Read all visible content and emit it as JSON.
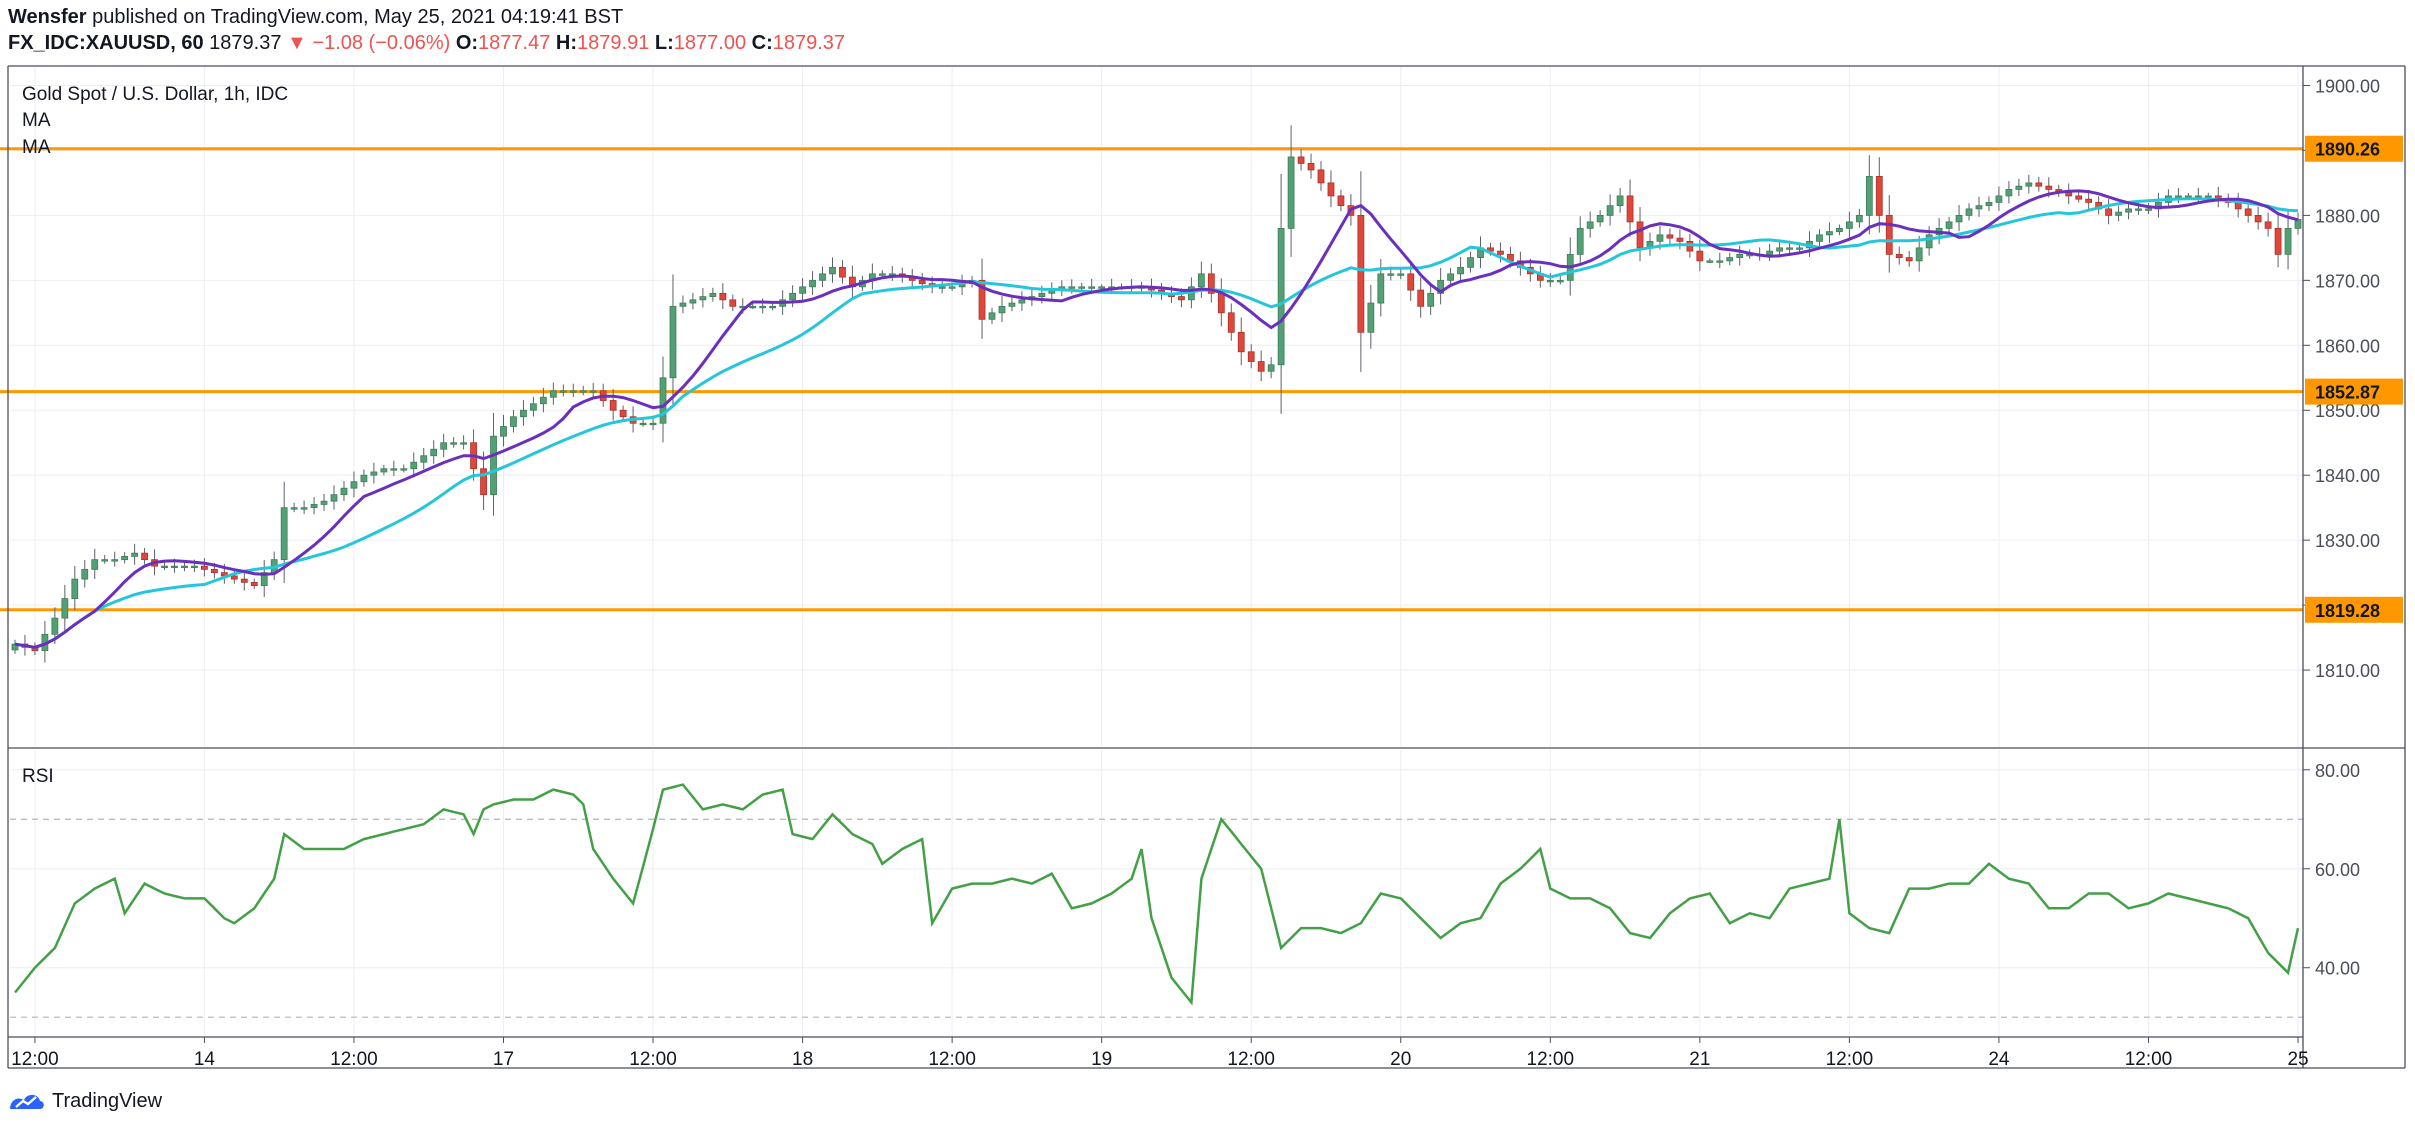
{
  "header": {
    "author": "Wensfer",
    "published_text": "published on TradingView.com, May 25, 2021 04:19:41 BST",
    "symbol": "FX_IDC:XAUUSD, 60",
    "last": "1879.37",
    "change_arrow": "▼",
    "change": "−1.08 (−0.06%)",
    "o_label": "O:",
    "o": "1877.47",
    "h_label": "H:",
    "h": "1879.91",
    "l_label": "L:",
    "l": "1877.00",
    "c_label": "C:",
    "c": "1879.37"
  },
  "legend": {
    "title": "Gold Spot / U.S. Dollar, 1h, IDC",
    "ma1": "MA",
    "ma2": "MA"
  },
  "rsi_label": "RSI",
  "footer": {
    "brand": "TradingView"
  },
  "colors": {
    "up": "#53a074",
    "down": "#e0473b",
    "ma_fast": "#6b2fbd",
    "ma_slow": "#26c6da",
    "level": "#ff9800",
    "rsi": "#43a047",
    "grid": "#eceef2",
    "axis_text": "#4a4e59"
  },
  "chart_data": [
    {
      "type": "candlestick",
      "title": "Gold Spot / U.S. Dollar, 1h, IDC",
      "ylim": [
        1798,
        1903
      ],
      "y_ticks": [
        1810,
        1820,
        1830,
        1840,
        1850,
        1860,
        1870,
        1880,
        1890,
        1900
      ],
      "y_tick_labels": [
        "1810.00",
        "1820.00",
        "1830.00",
        "1840.00",
        "1850.00",
        "1860.00",
        "1870.00",
        "1880.00",
        "1890.00",
        "1900.00"
      ],
      "x_ticks": [
        {
          "bar": 2,
          "label": "12:00"
        },
        {
          "bar": 19,
          "label": "14"
        },
        {
          "bar": 34,
          "label": "12:00"
        },
        {
          "bar": 49,
          "label": "17"
        },
        {
          "bar": 64,
          "label": "12:00"
        },
        {
          "bar": 79,
          "label": "18"
        },
        {
          "bar": 94,
          "label": "12:00"
        },
        {
          "bar": 109,
          "label": "19"
        },
        {
          "bar": 124,
          "label": "12:00"
        },
        {
          "bar": 139,
          "label": "20"
        },
        {
          "bar": 154,
          "label": "12:00"
        },
        {
          "bar": 169,
          "label": "21"
        },
        {
          "bar": 184,
          "label": "12:00"
        },
        {
          "bar": 199,
          "label": "24"
        },
        {
          "bar": 214,
          "label": "12:00"
        },
        {
          "bar": 229,
          "label": "25"
        }
      ],
      "price_levels": [
        {
          "value": 1890.26,
          "label": "1890.26"
        },
        {
          "value": 1852.87,
          "label": "1852.87"
        },
        {
          "value": 1819.28,
          "label": "1819.28"
        }
      ],
      "anchors": [
        [
          0,
          1814
        ],
        [
          2,
          1813
        ],
        [
          4,
          1818
        ],
        [
          6,
          1824
        ],
        [
          8,
          1827
        ],
        [
          10,
          1827
        ],
        [
          12,
          1828
        ],
        [
          14,
          1826
        ],
        [
          16,
          1826
        ],
        [
          18,
          1826
        ],
        [
          20,
          1825
        ],
        [
          22,
          1824
        ],
        [
          24,
          1823
        ],
        [
          26,
          1827
        ],
        [
          27,
          1835
        ],
        [
          29,
          1835
        ],
        [
          31,
          1836
        ],
        [
          33,
          1838
        ],
        [
          35,
          1840
        ],
        [
          37,
          1841
        ],
        [
          39,
          1841
        ],
        [
          41,
          1843
        ],
        [
          43,
          1845
        ],
        [
          45,
          1845
        ],
        [
          47,
          1837
        ],
        [
          48,
          1846
        ],
        [
          50,
          1849
        ],
        [
          52,
          1851
        ],
        [
          54,
          1853
        ],
        [
          56,
          1853
        ],
        [
          58,
          1853
        ],
        [
          60,
          1850
        ],
        [
          62,
          1848
        ],
        [
          64,
          1848
        ],
        [
          65,
          1855
        ],
        [
          66,
          1866
        ],
        [
          68,
          1867
        ],
        [
          70,
          1868
        ],
        [
          72,
          1866
        ],
        [
          74,
          1866
        ],
        [
          76,
          1866
        ],
        [
          78,
          1868
        ],
        [
          80,
          1870
        ],
        [
          82,
          1872
        ],
        [
          84,
          1869
        ],
        [
          86,
          1871
        ],
        [
          88,
          1871
        ],
        [
          90,
          1870
        ],
        [
          92,
          1869
        ],
        [
          94,
          1869
        ],
        [
          96,
          1870
        ],
        [
          97,
          1864
        ],
        [
          99,
          1866
        ],
        [
          101,
          1867
        ],
        [
          103,
          1868
        ],
        [
          105,
          1869
        ],
        [
          107,
          1869
        ],
        [
          109,
          1869
        ],
        [
          111,
          1869
        ],
        [
          113,
          1869
        ],
        [
          115,
          1868
        ],
        [
          117,
          1867
        ],
        [
          119,
          1871
        ],
        [
          121,
          1865
        ],
        [
          123,
          1859
        ],
        [
          125,
          1856
        ],
        [
          126,
          1857
        ],
        [
          127,
          1878
        ],
        [
          128,
          1889
        ],
        [
          130,
          1887
        ],
        [
          132,
          1883
        ],
        [
          134,
          1880
        ],
        [
          135,
          1862
        ],
        [
          137,
          1871
        ],
        [
          139,
          1871
        ],
        [
          141,
          1866
        ],
        [
          143,
          1870
        ],
        [
          145,
          1872
        ],
        [
          147,
          1875
        ],
        [
          149,
          1874
        ],
        [
          151,
          1872
        ],
        [
          153,
          1870
        ],
        [
          155,
          1870
        ],
        [
          157,
          1878
        ],
        [
          159,
          1880
        ],
        [
          161,
          1883
        ],
        [
          163,
          1875
        ],
        [
          165,
          1877
        ],
        [
          167,
          1876
        ],
        [
          169,
          1873
        ],
        [
          171,
          1873
        ],
        [
          173,
          1874
        ],
        [
          175,
          1874
        ],
        [
          177,
          1875
        ],
        [
          179,
          1875
        ],
        [
          181,
          1877
        ],
        [
          183,
          1878
        ],
        [
          185,
          1880
        ],
        [
          186,
          1886
        ],
        [
          188,
          1874
        ],
        [
          190,
          1873
        ],
        [
          192,
          1877
        ],
        [
          194,
          1879
        ],
        [
          196,
          1881
        ],
        [
          198,
          1882
        ],
        [
          200,
          1884
        ],
        [
          202,
          1885
        ],
        [
          204,
          1884
        ],
        [
          206,
          1883
        ],
        [
          208,
          1882
        ],
        [
          210,
          1880
        ],
        [
          212,
          1881
        ],
        [
          214,
          1881
        ],
        [
          216,
          1883
        ],
        [
          218,
          1883
        ],
        [
          220,
          1883
        ],
        [
          222,
          1882
        ],
        [
          224,
          1880
        ],
        [
          226,
          1878
        ],
        [
          227,
          1874
        ],
        [
          228,
          1878
        ],
        [
          229,
          1879.37
        ]
      ],
      "rsi": {
        "ylim": [
          26,
          84
        ],
        "ticks": [
          40,
          60,
          80
        ],
        "tick_labels": [
          "40.00",
          "60.00",
          "80.00"
        ],
        "bands": [
          30,
          70
        ],
        "anchors": [
          [
            0,
            35
          ],
          [
            2,
            40
          ],
          [
            4,
            44
          ],
          [
            6,
            53
          ],
          [
            8,
            56
          ],
          [
            10,
            58
          ],
          [
            11,
            51
          ],
          [
            13,
            57
          ],
          [
            15,
            55
          ],
          [
            17,
            54
          ],
          [
            19,
            54
          ],
          [
            21,
            50
          ],
          [
            22,
            49
          ],
          [
            24,
            52
          ],
          [
            26,
            58
          ],
          [
            27,
            67
          ],
          [
            29,
            64
          ],
          [
            31,
            64
          ],
          [
            33,
            64
          ],
          [
            35,
            66
          ],
          [
            37,
            67
          ],
          [
            39,
            68
          ],
          [
            41,
            69
          ],
          [
            43,
            72
          ],
          [
            45,
            71
          ],
          [
            46,
            67
          ],
          [
            47,
            72
          ],
          [
            48,
            73
          ],
          [
            50,
            74
          ],
          [
            52,
            74
          ],
          [
            54,
            76
          ],
          [
            56,
            75
          ],
          [
            57,
            73
          ],
          [
            58,
            64
          ],
          [
            60,
            58
          ],
          [
            62,
            53
          ],
          [
            64,
            68
          ],
          [
            65,
            76
          ],
          [
            67,
            77
          ],
          [
            69,
            72
          ],
          [
            71,
            73
          ],
          [
            73,
            72
          ],
          [
            75,
            75
          ],
          [
            77,
            76
          ],
          [
            78,
            67
          ],
          [
            80,
            66
          ],
          [
            82,
            71
          ],
          [
            84,
            67
          ],
          [
            86,
            65
          ],
          [
            87,
            61
          ],
          [
            89,
            64
          ],
          [
            91,
            66
          ],
          [
            92,
            49
          ],
          [
            94,
            56
          ],
          [
            96,
            57
          ],
          [
            98,
            57
          ],
          [
            100,
            58
          ],
          [
            102,
            57
          ],
          [
            104,
            59
          ],
          [
            106,
            52
          ],
          [
            108,
            53
          ],
          [
            110,
            55
          ],
          [
            112,
            58
          ],
          [
            113,
            64
          ],
          [
            114,
            50
          ],
          [
            116,
            38
          ],
          [
            118,
            33
          ],
          [
            119,
            58
          ],
          [
            121,
            70
          ],
          [
            123,
            65
          ],
          [
            125,
            60
          ],
          [
            127,
            44
          ],
          [
            129,
            48
          ],
          [
            131,
            48
          ],
          [
            133,
            47
          ],
          [
            135,
            49
          ],
          [
            137,
            55
          ],
          [
            139,
            54
          ],
          [
            141,
            50
          ],
          [
            143,
            46
          ],
          [
            145,
            49
          ],
          [
            147,
            50
          ],
          [
            149,
            57
          ],
          [
            151,
            60
          ],
          [
            153,
            64
          ],
          [
            154,
            56
          ],
          [
            156,
            54
          ],
          [
            158,
            54
          ],
          [
            160,
            52
          ],
          [
            162,
            47
          ],
          [
            164,
            46
          ],
          [
            166,
            51
          ],
          [
            168,
            54
          ],
          [
            170,
            55
          ],
          [
            172,
            49
          ],
          [
            174,
            51
          ],
          [
            176,
            50
          ],
          [
            178,
            56
          ],
          [
            180,
            57
          ],
          [
            182,
            58
          ],
          [
            183,
            70
          ],
          [
            184,
            51
          ],
          [
            186,
            48
          ],
          [
            188,
            47
          ],
          [
            190,
            56
          ],
          [
            192,
            56
          ],
          [
            194,
            57
          ],
          [
            196,
            57
          ],
          [
            198,
            61
          ],
          [
            200,
            58
          ],
          [
            202,
            57
          ],
          [
            204,
            52
          ],
          [
            206,
            52
          ],
          [
            208,
            55
          ],
          [
            210,
            55
          ],
          [
            212,
            52
          ],
          [
            214,
            53
          ],
          [
            216,
            55
          ],
          [
            218,
            54
          ],
          [
            220,
            53
          ],
          [
            222,
            52
          ],
          [
            224,
            50
          ],
          [
            226,
            43
          ],
          [
            228,
            39
          ],
          [
            229,
            48
          ]
        ]
      }
    }
  ]
}
